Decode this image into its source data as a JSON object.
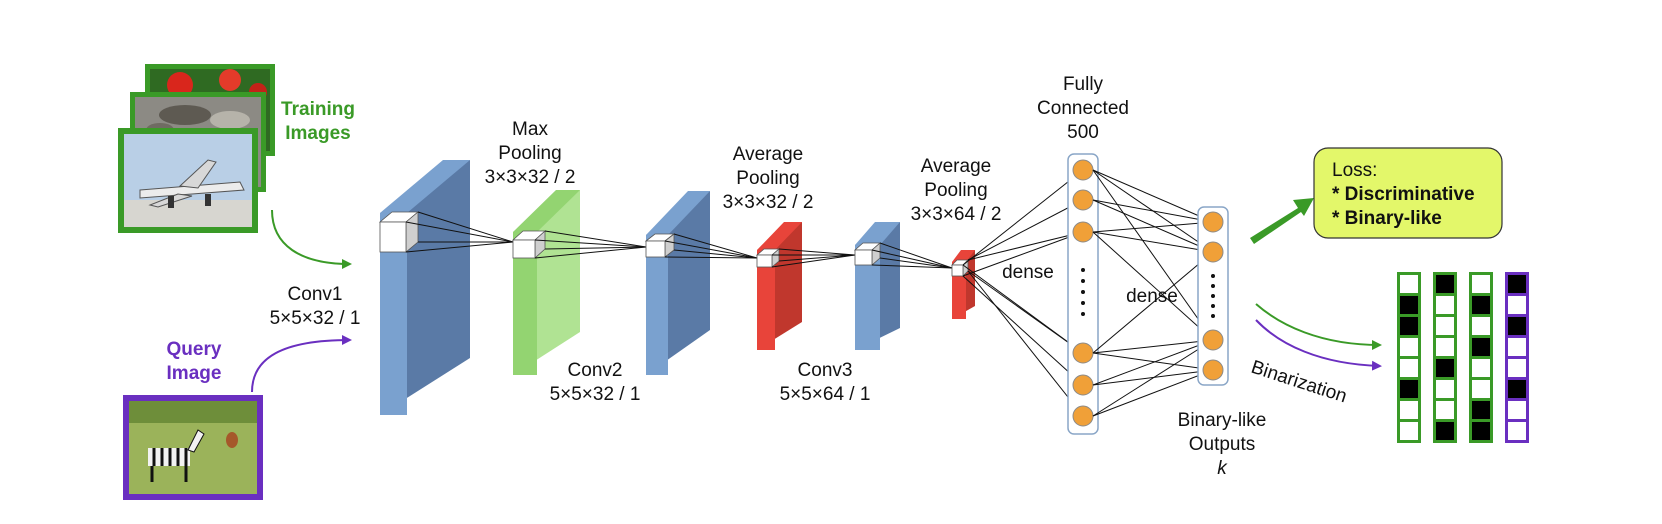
{
  "inputs": {
    "training_label": [
      "Training",
      "Images"
    ],
    "query_label": [
      "Query",
      "Image"
    ]
  },
  "layers": {
    "conv1": [
      "Conv1",
      "5×5×32 / 1"
    ],
    "maxpool": [
      "Max",
      "Pooling",
      "3×3×32 / 2"
    ],
    "conv2": [
      "Conv2",
      "5×5×32 / 1"
    ],
    "avgpool1": [
      "Average",
      "Pooling",
      "3×3×32 / 2"
    ],
    "conv3": [
      "Conv3",
      "5×5×64 / 1"
    ],
    "avgpool2": [
      "Average",
      "Pooling",
      "3×3×64 / 2"
    ],
    "fc": [
      "Fully",
      "Connected",
      "500"
    ],
    "dense_1": "dense",
    "dense_2": "dense",
    "outputs": [
      "Binary-like",
      "Outputs",
      "k"
    ]
  },
  "loss": {
    "title": "Loss:",
    "items": [
      "* Discriminative",
      "* Binary-like"
    ]
  },
  "binarization_label": "Binarization",
  "codes": {
    "columns": [
      {
        "kind": "training",
        "bits": [
          0,
          1,
          1,
          0,
          0,
          1,
          0,
          0
        ]
      },
      {
        "kind": "training",
        "bits": [
          1,
          0,
          0,
          0,
          1,
          0,
          0,
          1
        ]
      },
      {
        "kind": "training",
        "bits": [
          0,
          1,
          0,
          1,
          0,
          0,
          1,
          1
        ]
      },
      {
        "kind": "query",
        "bits": [
          1,
          0,
          1,
          0,
          0,
          1,
          0,
          0
        ]
      }
    ]
  },
  "colors": {
    "training": "#3a9a27",
    "query": "#6a2fc0",
    "conv_front": "#7aa1cf",
    "conv_side": "#5a7aa6",
    "maxpool_front": "#93d471",
    "maxpool_side": "#b0e393",
    "avgpool_front": "#e8443a",
    "avgpool_side": "#c0372d",
    "neuron": "#f0a038",
    "loss_box": "#e3f76a"
  }
}
